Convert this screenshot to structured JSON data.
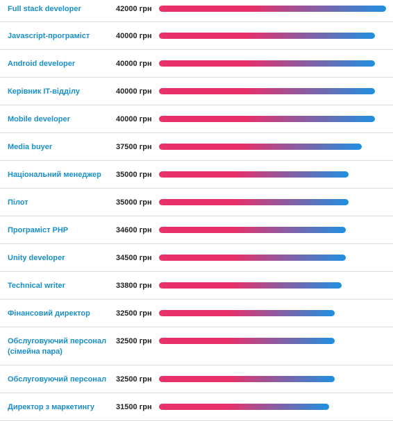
{
  "colors": {
    "bar_start": "#e8306a",
    "bar_end": "#1e90e0",
    "label": "#1a8fc9"
  },
  "chart_data": {
    "type": "bar",
    "orientation": "horizontal",
    "unit": "грн",
    "xlim": [
      0,
      42000
    ],
    "categories": [
      "Full stack developer",
      "Javascript-програміст",
      "Android developer",
      "Керівник IT-відділу",
      "Mobile developer",
      "Media buyer",
      "Національний менеджер",
      "Пілот",
      "Програміст PHP",
      "Unity developer",
      "Technical writer",
      "Фінансовий директор",
      "Обслуговуючий персонал (сімейна пара)",
      "Обслуговуючий персонал",
      "Директор з маркетингу"
    ],
    "values": [
      42000,
      40000,
      40000,
      40000,
      40000,
      37500,
      35000,
      35000,
      34600,
      34500,
      33800,
      32500,
      32500,
      32500,
      31500
    ],
    "value_labels": [
      "42000 грн",
      "40000 грн",
      "40000 грн",
      "40000 грн",
      "40000 грн",
      "37500 грн",
      "35000 грн",
      "35000 грн",
      "34600 грн",
      "34500 грн",
      "33800 грн",
      "32500 грн",
      "32500 грн",
      "32500 грн",
      "31500 грн"
    ]
  }
}
